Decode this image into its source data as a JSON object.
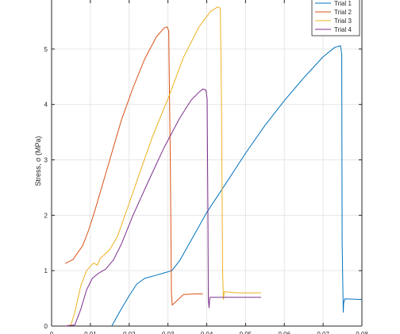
{
  "chart_data": {
    "type": "line",
    "title": "",
    "xlabel": "",
    "ylabel": "Stress, σ (MPa)",
    "xlim": [
      0,
      0.08
    ],
    "ylim": [
      0,
      6
    ],
    "x_ticks": [
      0,
      0.01,
      0.02,
      0.03,
      0.04,
      0.05,
      0.06,
      0.07,
      0.08
    ],
    "x_tick_labels": [
      "0",
      "0.01",
      "0.02",
      "0.03",
      "0.04",
      "0.05",
      "0.06",
      "0.07",
      "0.08"
    ],
    "y_ticks": [
      0,
      1,
      2,
      3,
      4,
      5
    ],
    "y_tick_labels": [
      "0",
      "1",
      "2",
      "3",
      "4",
      "5"
    ],
    "grid": true,
    "legend_position": "top-right",
    "series": [
      {
        "name": "Trial 1",
        "color": "#0072BD",
        "x": [
          0.0155,
          0.0175,
          0.02,
          0.022,
          0.024,
          0.027,
          0.029,
          0.031,
          0.033,
          0.036,
          0.04,
          0.045,
          0.05,
          0.055,
          0.06,
          0.065,
          0.07,
          0.073,
          0.0745,
          0.0748,
          0.0749,
          0.0752,
          0.0753,
          0.0756,
          0.08
        ],
        "y": [
          0.0,
          0.25,
          0.55,
          0.76,
          0.86,
          0.92,
          0.96,
          1.0,
          1.18,
          1.55,
          2.05,
          2.58,
          3.12,
          3.62,
          4.07,
          4.48,
          4.86,
          5.03,
          5.06,
          4.9,
          1.5,
          0.25,
          0.42,
          0.49,
          0.48
        ]
      },
      {
        "name": "Trial 2",
        "color": "#D95319",
        "x": [
          0.0035,
          0.0055,
          0.008,
          0.0095,
          0.011,
          0.013,
          0.015,
          0.018,
          0.021,
          0.024,
          0.027,
          0.029,
          0.0298,
          0.0302,
          0.0306,
          0.0309,
          0.0311,
          0.034,
          0.037,
          0.039
        ],
        "y": [
          1.13,
          1.2,
          1.45,
          1.72,
          2.05,
          2.52,
          3.0,
          3.72,
          4.3,
          4.82,
          5.22,
          5.38,
          5.4,
          5.33,
          3.0,
          0.6,
          0.38,
          0.57,
          0.58,
          0.58
        ]
      },
      {
        "name": "Trial 3",
        "color": "#EDB120",
        "x": [
          0.0035,
          0.005,
          0.006,
          0.0075,
          0.009,
          0.0108,
          0.0118,
          0.0125,
          0.0135,
          0.015,
          0.017,
          0.02,
          0.023,
          0.026,
          0.03,
          0.034,
          0.038,
          0.041,
          0.0428,
          0.0435,
          0.0438,
          0.0441,
          0.0443,
          0.0445,
          0.048,
          0.054
        ],
        "y": [
          0.0,
          0.02,
          0.25,
          0.72,
          1.0,
          1.14,
          1.1,
          1.22,
          1.28,
          1.38,
          1.62,
          2.22,
          2.82,
          3.42,
          4.1,
          4.85,
          5.4,
          5.68,
          5.76,
          5.74,
          4.0,
          1.0,
          0.48,
          0.62,
          0.6,
          0.6
        ]
      },
      {
        "name": "Trial 4",
        "color": "#7E2F8E",
        "x": [
          0.0035,
          0.006,
          0.0075,
          0.009,
          0.0105,
          0.012,
          0.014,
          0.016,
          0.018,
          0.021,
          0.025,
          0.029,
          0.033,
          0.036,
          0.038,
          0.039,
          0.0398,
          0.0401,
          0.0403,
          0.0404,
          0.0406,
          0.0408,
          0.045,
          0.054
        ],
        "y": [
          0.0,
          0.02,
          0.3,
          0.65,
          0.86,
          0.95,
          1.03,
          1.2,
          1.48,
          2.0,
          2.62,
          3.22,
          3.75,
          4.08,
          4.22,
          4.28,
          4.26,
          4.1,
          2.0,
          0.5,
          0.33,
          0.52,
          0.52,
          0.52
        ]
      }
    ]
  }
}
